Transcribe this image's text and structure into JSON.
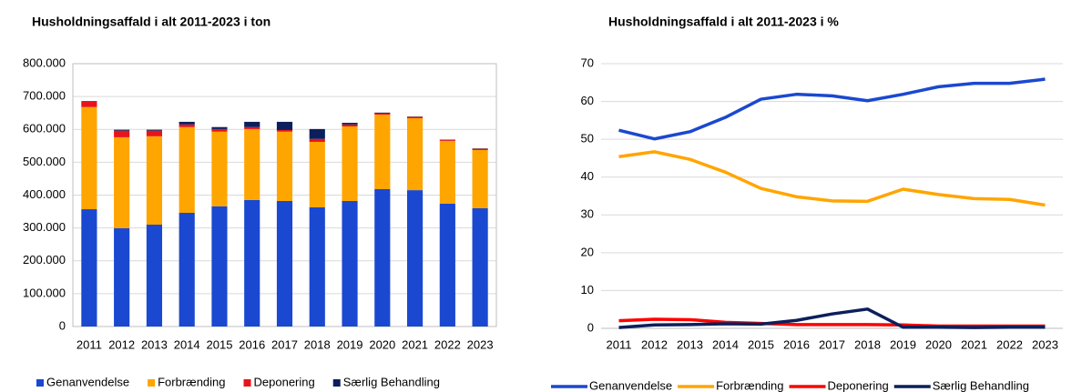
{
  "chart_data": [
    {
      "type": "stacked_bar",
      "title": "Husholdningsaffald i alt 2011-2023 i ton",
      "categories": [
        "2011",
        "2012",
        "2013",
        "2014",
        "2015",
        "2016",
        "2017",
        "2018",
        "2019",
        "2020",
        "2021",
        "2022",
        "2023"
      ],
      "series": [
        {
          "name": "Genanvendelse",
          "color": "#1a48d0",
          "values": [
            357000,
            299000,
            310000,
            346000,
            366000,
            385000,
            382000,
            363000,
            382000,
            418000,
            415000,
            374000,
            360000
          ]
        },
        {
          "name": "Forbrænding",
          "color": "#ffa500",
          "values": [
            311000,
            277000,
            269000,
            261000,
            227000,
            216000,
            211000,
            199000,
            227000,
            227000,
            219000,
            191000,
            177000
          ]
        },
        {
          "name": "Deponering",
          "color": "#e8141c",
          "values": [
            16000,
            20000,
            17000,
            8000,
            8000,
            6000,
            5000,
            9000,
            6000,
            4000,
            4000,
            3000,
            4000
          ]
        },
        {
          "name": "Særlig Behandling",
          "color": "#0c1f5c",
          "values": [
            2000,
            3000,
            3000,
            8000,
            6000,
            16000,
            25000,
            30000,
            5000,
            2000,
            1000,
            1000,
            1000
          ]
        }
      ],
      "ylim": [
        0,
        800000
      ],
      "yticks": [
        {
          "value": 0,
          "label": "0"
        },
        {
          "value": 100000,
          "label": "100.000"
        },
        {
          "value": 200000,
          "label": "200.000"
        },
        {
          "value": 300000,
          "label": "300.000"
        },
        {
          "value": 400000,
          "label": "400.000"
        },
        {
          "value": 500000,
          "label": "500.000"
        },
        {
          "value": 600000,
          "label": "600.000"
        },
        {
          "value": 700000,
          "label": "700.000"
        },
        {
          "value": 800000,
          "label": "800.000"
        }
      ],
      "grid": true,
      "legend": "bottom"
    },
    {
      "type": "line",
      "title": "Husholdningsaffald i alt 2011-2023 i %",
      "categories": [
        "2011",
        "2012",
        "2013",
        "2014",
        "2015",
        "2016",
        "2017",
        "2018",
        "2019",
        "2020",
        "2021",
        "2022",
        "2023"
      ],
      "series": [
        {
          "name": "Genanvendelse",
          "color": "#1a48d0",
          "values": [
            52.4,
            50.1,
            52,
            55.8,
            60.6,
            61.9,
            61.5,
            60.2,
            61.9,
            63.9,
            64.8,
            64.8,
            65.9
          ]
        },
        {
          "name": "Forbrænding",
          "color": "#ffa500",
          "values": [
            45.4,
            46.7,
            44.7,
            41.3,
            37,
            34.8,
            33.7,
            33.6,
            36.8,
            35.4,
            34.3,
            34.1,
            32.6
          ]
        },
        {
          "name": "Deponering",
          "color": "#ff0000",
          "values": [
            2.0,
            2.4,
            2.3,
            1.6,
            1.3,
            1.0,
            1.0,
            1.0,
            0.9,
            0.6,
            0.6,
            0.6,
            0.6
          ]
        },
        {
          "name": "Særlig Behandling",
          "color": "#0c1f5c",
          "values": [
            0.2,
            0.9,
            1.0,
            1.2,
            1.1,
            2.1,
            3.8,
            5.1,
            0.3,
            0.3,
            0.2,
            0.3,
            0.3
          ]
        }
      ],
      "ylim": [
        0,
        70
      ],
      "yticks": [
        0,
        10,
        20,
        30,
        40,
        50,
        60,
        70
      ],
      "grid": true,
      "legend": "bottom"
    }
  ]
}
